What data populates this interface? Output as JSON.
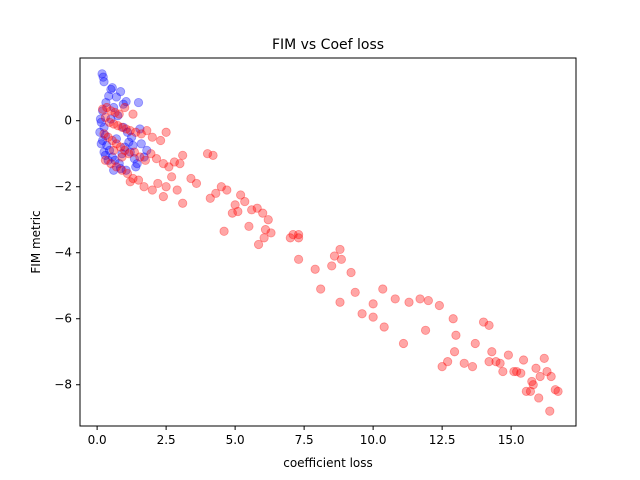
{
  "chart_data": {
    "type": "scatter",
    "title": "FIM vs Coef loss",
    "xlabel": "coefficient loss",
    "ylabel": "FIM metric",
    "xlim": [
      -0.62,
      17.35
    ],
    "ylim": [
      -9.25,
      1.9
    ],
    "xticks": [
      0.0,
      2.5,
      5.0,
      7.5,
      10.0,
      12.5,
      15.0
    ],
    "xtick_labels": [
      "0.0",
      "2.5",
      "5.0",
      "7.5",
      "10.0",
      "12.5",
      "15.0"
    ],
    "yticks": [
      0,
      -2,
      -4,
      -6,
      -8
    ],
    "ytick_labels": [
      "0",
      "−2",
      "−4",
      "−6",
      "−8"
    ],
    "grid": false,
    "marker_alpha": 0.35,
    "series": [
      {
        "color": "#0000ff",
        "points": [
          [
            0.18,
            1.42
          ],
          [
            0.22,
            1.32
          ],
          [
            0.25,
            1.18
          ],
          [
            0.55,
            1.0
          ],
          [
            0.5,
            0.95
          ],
          [
            0.85,
            0.88
          ],
          [
            0.7,
            0.72
          ],
          [
            0.42,
            0.75
          ],
          [
            1.05,
            0.58
          ],
          [
            0.95,
            0.5
          ],
          [
            1.5,
            0.55
          ],
          [
            0.32,
            0.55
          ],
          [
            0.6,
            0.4
          ],
          [
            0.2,
            0.3
          ],
          [
            0.12,
            0.05
          ],
          [
            0.15,
            -0.05
          ],
          [
            0.25,
            -0.2
          ],
          [
            0.1,
            -0.35
          ],
          [
            0.3,
            -0.45
          ],
          [
            0.2,
            -0.6
          ],
          [
            0.35,
            -0.75
          ],
          [
            0.15,
            -0.7
          ],
          [
            0.45,
            -0.9
          ],
          [
            0.3,
            -1.05
          ],
          [
            0.55,
            -1.1
          ],
          [
            0.65,
            -1.2
          ],
          [
            0.8,
            -1.3
          ],
          [
            0.9,
            -1.0
          ],
          [
            1.0,
            -0.8
          ],
          [
            1.2,
            -0.95
          ],
          [
            1.35,
            -1.15
          ],
          [
            1.45,
            -1.3
          ],
          [
            1.6,
            -0.7
          ],
          [
            1.7,
            -1.1
          ],
          [
            1.8,
            -0.9
          ],
          [
            1.25,
            -0.5
          ],
          [
            1.1,
            -0.35
          ],
          [
            0.95,
            -0.2
          ],
          [
            0.5,
            0.05
          ],
          [
            0.75,
            0.15
          ],
          [
            1.55,
            -0.25
          ],
          [
            0.85,
            -1.45
          ],
          [
            0.6,
            -1.5
          ],
          [
            0.4,
            -1.2
          ],
          [
            1.4,
            -1.4
          ],
          [
            1.05,
            -1.5
          ],
          [
            1.15,
            -0.65
          ],
          [
            0.25,
            -0.95
          ],
          [
            0.7,
            -0.55
          ],
          [
            1.3,
            -0.75
          ]
        ]
      },
      {
        "color": "#ff0000",
        "points": [
          [
            0.2,
            0.35
          ],
          [
            0.35,
            0.4
          ],
          [
            0.5,
            0.3
          ],
          [
            0.65,
            0.25
          ],
          [
            0.8,
            0.2
          ],
          [
            1.0,
            0.4
          ],
          [
            1.3,
            0.2
          ],
          [
            0.3,
            0.1
          ],
          [
            0.45,
            -0.05
          ],
          [
            0.6,
            -0.1
          ],
          [
            0.75,
            -0.15
          ],
          [
            0.9,
            -0.2
          ],
          [
            1.05,
            -0.25
          ],
          [
            1.2,
            -0.3
          ],
          [
            1.4,
            -0.35
          ],
          [
            1.6,
            -0.4
          ],
          [
            1.8,
            -0.3
          ],
          [
            2.0,
            -0.5
          ],
          [
            2.3,
            -0.6
          ],
          [
            2.5,
            -0.35
          ],
          [
            0.25,
            -0.4
          ],
          [
            0.4,
            -0.5
          ],
          [
            0.55,
            -0.6
          ],
          [
            0.7,
            -0.7
          ],
          [
            0.85,
            -0.8
          ],
          [
            1.0,
            -0.9
          ],
          [
            1.15,
            -1.0
          ],
          [
            1.35,
            -0.95
          ],
          [
            1.55,
            -1.1
          ],
          [
            1.75,
            -1.2
          ],
          [
            1.95,
            -1.0
          ],
          [
            2.15,
            -1.15
          ],
          [
            2.4,
            -1.3
          ],
          [
            2.6,
            -1.4
          ],
          [
            2.8,
            -1.25
          ],
          [
            3.0,
            -1.3
          ],
          [
            3.1,
            -1.05
          ],
          [
            0.3,
            -1.2
          ],
          [
            0.5,
            -1.3
          ],
          [
            0.7,
            -1.4
          ],
          [
            0.9,
            -1.5
          ],
          [
            1.1,
            -1.6
          ],
          [
            1.3,
            -1.75
          ],
          [
            1.5,
            -1.8
          ],
          [
            1.7,
            -2.0
          ],
          [
            2.0,
            -2.1
          ],
          [
            2.2,
            -1.9
          ],
          [
            2.5,
            -2.0
          ],
          [
            2.7,
            -1.7
          ],
          [
            2.9,
            -2.1
          ],
          [
            3.1,
            -2.5
          ],
          [
            3.4,
            -1.75
          ],
          [
            3.6,
            -1.9
          ],
          [
            2.4,
            -2.3
          ],
          [
            1.2,
            -1.85
          ],
          [
            0.9,
            -1.1
          ],
          [
            0.6,
            -0.9
          ],
          [
            4.0,
            -1.0
          ],
          [
            4.2,
            -1.05
          ],
          [
            4.1,
            -2.35
          ],
          [
            4.3,
            -2.2
          ],
          [
            4.5,
            -2.0
          ],
          [
            4.7,
            -2.1
          ],
          [
            4.9,
            -2.8
          ],
          [
            4.6,
            -3.35
          ],
          [
            5.0,
            -2.55
          ],
          [
            5.1,
            -2.75
          ],
          [
            5.2,
            -2.25
          ],
          [
            5.35,
            -2.45
          ],
          [
            5.5,
            -3.2
          ],
          [
            5.6,
            -2.7
          ],
          [
            5.8,
            -2.65
          ],
          [
            6.0,
            -2.8
          ],
          [
            6.05,
            -3.55
          ],
          [
            6.1,
            -3.3
          ],
          [
            6.2,
            -3.0
          ],
          [
            6.3,
            -3.4
          ],
          [
            5.85,
            -3.75
          ],
          [
            7.0,
            -3.55
          ],
          [
            7.1,
            -3.45
          ],
          [
            7.3,
            -3.45
          ],
          [
            7.3,
            -3.55
          ],
          [
            7.3,
            -4.2
          ],
          [
            7.9,
            -4.5
          ],
          [
            8.1,
            -5.1
          ],
          [
            8.5,
            -4.4
          ],
          [
            8.6,
            -4.1
          ],
          [
            8.8,
            -3.9
          ],
          [
            8.85,
            -4.2
          ],
          [
            8.8,
            -5.5
          ],
          [
            9.2,
            -4.6
          ],
          [
            9.35,
            -5.2
          ],
          [
            9.6,
            -5.85
          ],
          [
            10.0,
            -5.95
          ],
          [
            10.0,
            -5.55
          ],
          [
            10.35,
            -5.1
          ],
          [
            10.4,
            -6.25
          ],
          [
            10.8,
            -5.4
          ],
          [
            11.1,
            -6.75
          ],
          [
            11.3,
            -5.5
          ],
          [
            11.7,
            -5.4
          ],
          [
            11.9,
            -6.35
          ],
          [
            12.0,
            -5.45
          ],
          [
            12.4,
            -5.6
          ],
          [
            12.5,
            -7.45
          ],
          [
            12.7,
            -7.3
          ],
          [
            12.9,
            -6.0
          ],
          [
            13.0,
            -6.5
          ],
          [
            12.95,
            -7.0
          ],
          [
            13.3,
            -7.35
          ],
          [
            13.6,
            -7.45
          ],
          [
            13.7,
            -6.75
          ],
          [
            14.0,
            -6.1
          ],
          [
            14.2,
            -6.2
          ],
          [
            14.2,
            -7.3
          ],
          [
            14.3,
            -7.0
          ],
          [
            14.45,
            -7.3
          ],
          [
            14.6,
            -7.35
          ],
          [
            14.7,
            -7.6
          ],
          [
            14.9,
            -7.1
          ],
          [
            15.1,
            -7.6
          ],
          [
            15.2,
            -7.6
          ],
          [
            15.35,
            -7.65
          ],
          [
            15.45,
            -7.25
          ],
          [
            15.55,
            -8.2
          ],
          [
            15.7,
            -8.2
          ],
          [
            15.75,
            -7.9
          ],
          [
            15.8,
            -8.0
          ],
          [
            15.9,
            -7.5
          ],
          [
            16.0,
            -8.4
          ],
          [
            16.05,
            -7.75
          ],
          [
            16.2,
            -7.2
          ],
          [
            16.3,
            -7.6
          ],
          [
            16.45,
            -7.75
          ],
          [
            16.4,
            -8.8
          ],
          [
            16.6,
            -8.15
          ],
          [
            16.7,
            -8.2
          ]
        ]
      }
    ]
  }
}
